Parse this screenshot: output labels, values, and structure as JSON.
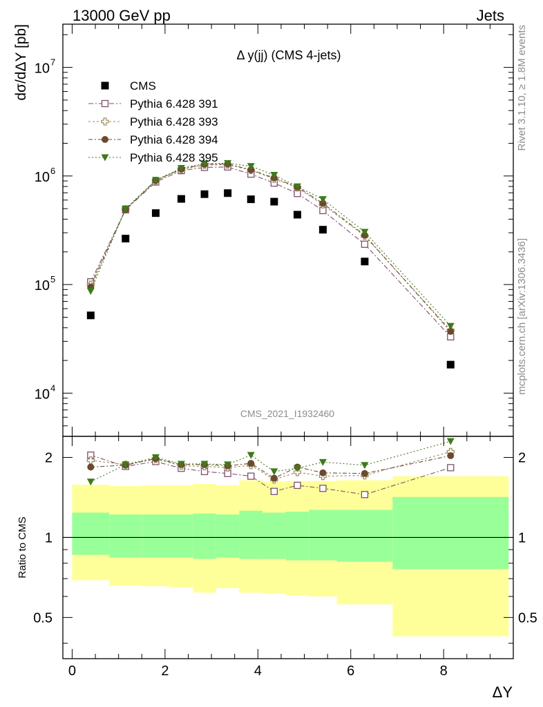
{
  "header": {
    "left": "13000 GeV pp",
    "right": "Jets"
  },
  "side_texts": {
    "rivet": "Rivet 3.1.10, ≥ 1.8M events",
    "mcplots": "mcplots.cern.ch [arXiv:1306.3436]"
  },
  "chart_data": [
    {
      "type": "scatter",
      "title": "Δ y(jj) (CMS 4-jets)",
      "ylabel": "dσ/dΔY [pb]",
      "xlabel": "ΔY",
      "watermark": "CMS_2021_I1932460",
      "yscale": "log",
      "xlim": [
        -0.2,
        9.5
      ],
      "ylim": [
        4000,
        25000000
      ],
      "y_ticks": [
        {
          "value": 10000,
          "label": "10"
        },
        {
          "value": 100000,
          "label": "10"
        },
        {
          "value": 1000000,
          "label": "10"
        },
        {
          "value": 10000000,
          "label": "10"
        }
      ],
      "y_tick_exponents": [
        "4",
        "5",
        "6",
        "7"
      ],
      "legend_position": "top-left",
      "x": [
        0.4,
        1.15,
        1.8,
        2.35,
        2.85,
        3.35,
        3.85,
        4.35,
        4.85,
        5.4,
        6.3,
        8.15
      ],
      "series": [
        {
          "name": "CMS",
          "marker": "square-filled",
          "color": "#000000",
          "values": [
            52000,
            265000,
            455000,
            615000,
            680000,
            695000,
            610000,
            580000,
            440000,
            320000,
            163000,
            18300
          ]
        },
        {
          "name": "Pythia 6.428 391",
          "marker": "square-open",
          "color": "#7a4f6a",
          "values": [
            106000,
            488000,
            880000,
            1120000,
            1200000,
            1210000,
            1040000,
            860000,
            690000,
            480000,
            235000,
            33000
          ]
        },
        {
          "name": "Pythia 6.428 393",
          "marker": "cross-open",
          "color": "#9a8a5a",
          "values": [
            100000,
            495000,
            905000,
            1150000,
            1260000,
            1270000,
            1130000,
            940000,
            780000,
            545000,
            280000,
            38000
          ]
        },
        {
          "name": "Pythia 6.428 394",
          "marker": "circle-filled",
          "color": "#6b4a30",
          "values": [
            95000,
            490000,
            910000,
            1160000,
            1280000,
            1290000,
            1140000,
            960000,
            790000,
            560000,
            285000,
            37000
          ]
        },
        {
          "name": "Pythia 6.428 395",
          "marker": "triangle-down-filled",
          "color": "#3f7a1a",
          "values": [
            87000,
            500000,
            915000,
            1180000,
            1300000,
            1310000,
            1230000,
            1020000,
            800000,
            610000,
            305000,
            41500
          ]
        }
      ]
    },
    {
      "type": "scatter",
      "ylabel": "Ratio to CMS",
      "xlabel": "ΔY",
      "xlim": [
        -0.2,
        9.5
      ],
      "ylim": [
        0.35,
        2.4
      ],
      "x_ticks": [
        0,
        2,
        4,
        6,
        8
      ],
      "y_ticks": [
        0.5,
        1,
        2
      ],
      "bands": {
        "edges": [
          0,
          0.8,
          1.5,
          2.1,
          2.6,
          3.1,
          3.6,
          4.1,
          4.6,
          5.1,
          5.7,
          6.9,
          9.4
        ],
        "yellow_low": [
          0.69,
          0.66,
          0.655,
          0.65,
          0.62,
          0.645,
          0.62,
          0.615,
          0.605,
          0.6,
          0.56,
          0.425
        ],
        "yellow_high": [
          1.58,
          1.56,
          1.57,
          1.57,
          1.59,
          1.57,
          1.64,
          1.62,
          1.63,
          1.63,
          1.64,
          1.7
        ],
        "green_low": [
          0.86,
          0.84,
          0.84,
          0.84,
          0.83,
          0.84,
          0.83,
          0.83,
          0.82,
          0.82,
          0.81,
          0.76
        ],
        "green_high": [
          1.24,
          1.22,
          1.22,
          1.22,
          1.23,
          1.22,
          1.26,
          1.24,
          1.25,
          1.27,
          1.27,
          1.42
        ]
      },
      "x": [
        0.4,
        1.15,
        1.8,
        2.35,
        2.85,
        3.35,
        3.85,
        4.35,
        4.85,
        5.4,
        6.3,
        8.15
      ],
      "series": [
        {
          "name": "Pythia 6.428 391",
          "marker": "square-open",
          "color": "#7a4f6a",
          "values": [
            2.04,
            1.85,
            1.93,
            1.82,
            1.77,
            1.74,
            1.7,
            1.49,
            1.57,
            1.53,
            1.45,
            1.83
          ]
        },
        {
          "name": "Pythia 6.428 393",
          "marker": "cross-open",
          "color": "#9a8a5a",
          "values": [
            1.95,
            1.88,
            1.97,
            1.86,
            1.85,
            1.83,
            1.87,
            1.65,
            1.76,
            1.7,
            1.71,
            2.1
          ]
        },
        {
          "name": "Pythia 6.428 394",
          "marker": "circle-filled",
          "color": "#6b4a30",
          "values": [
            1.84,
            1.87,
            1.98,
            1.88,
            1.88,
            1.86,
            1.9,
            1.67,
            1.84,
            1.75,
            1.74,
            2.03
          ]
        },
        {
          "name": "Pythia 6.428 395",
          "marker": "triangle-down-filled",
          "color": "#3f7a1a",
          "values": [
            1.62,
            1.88,
            2.0,
            1.89,
            1.89,
            1.88,
            2.04,
            1.77,
            1.82,
            1.92,
            1.87,
            2.3
          ]
        }
      ]
    }
  ]
}
